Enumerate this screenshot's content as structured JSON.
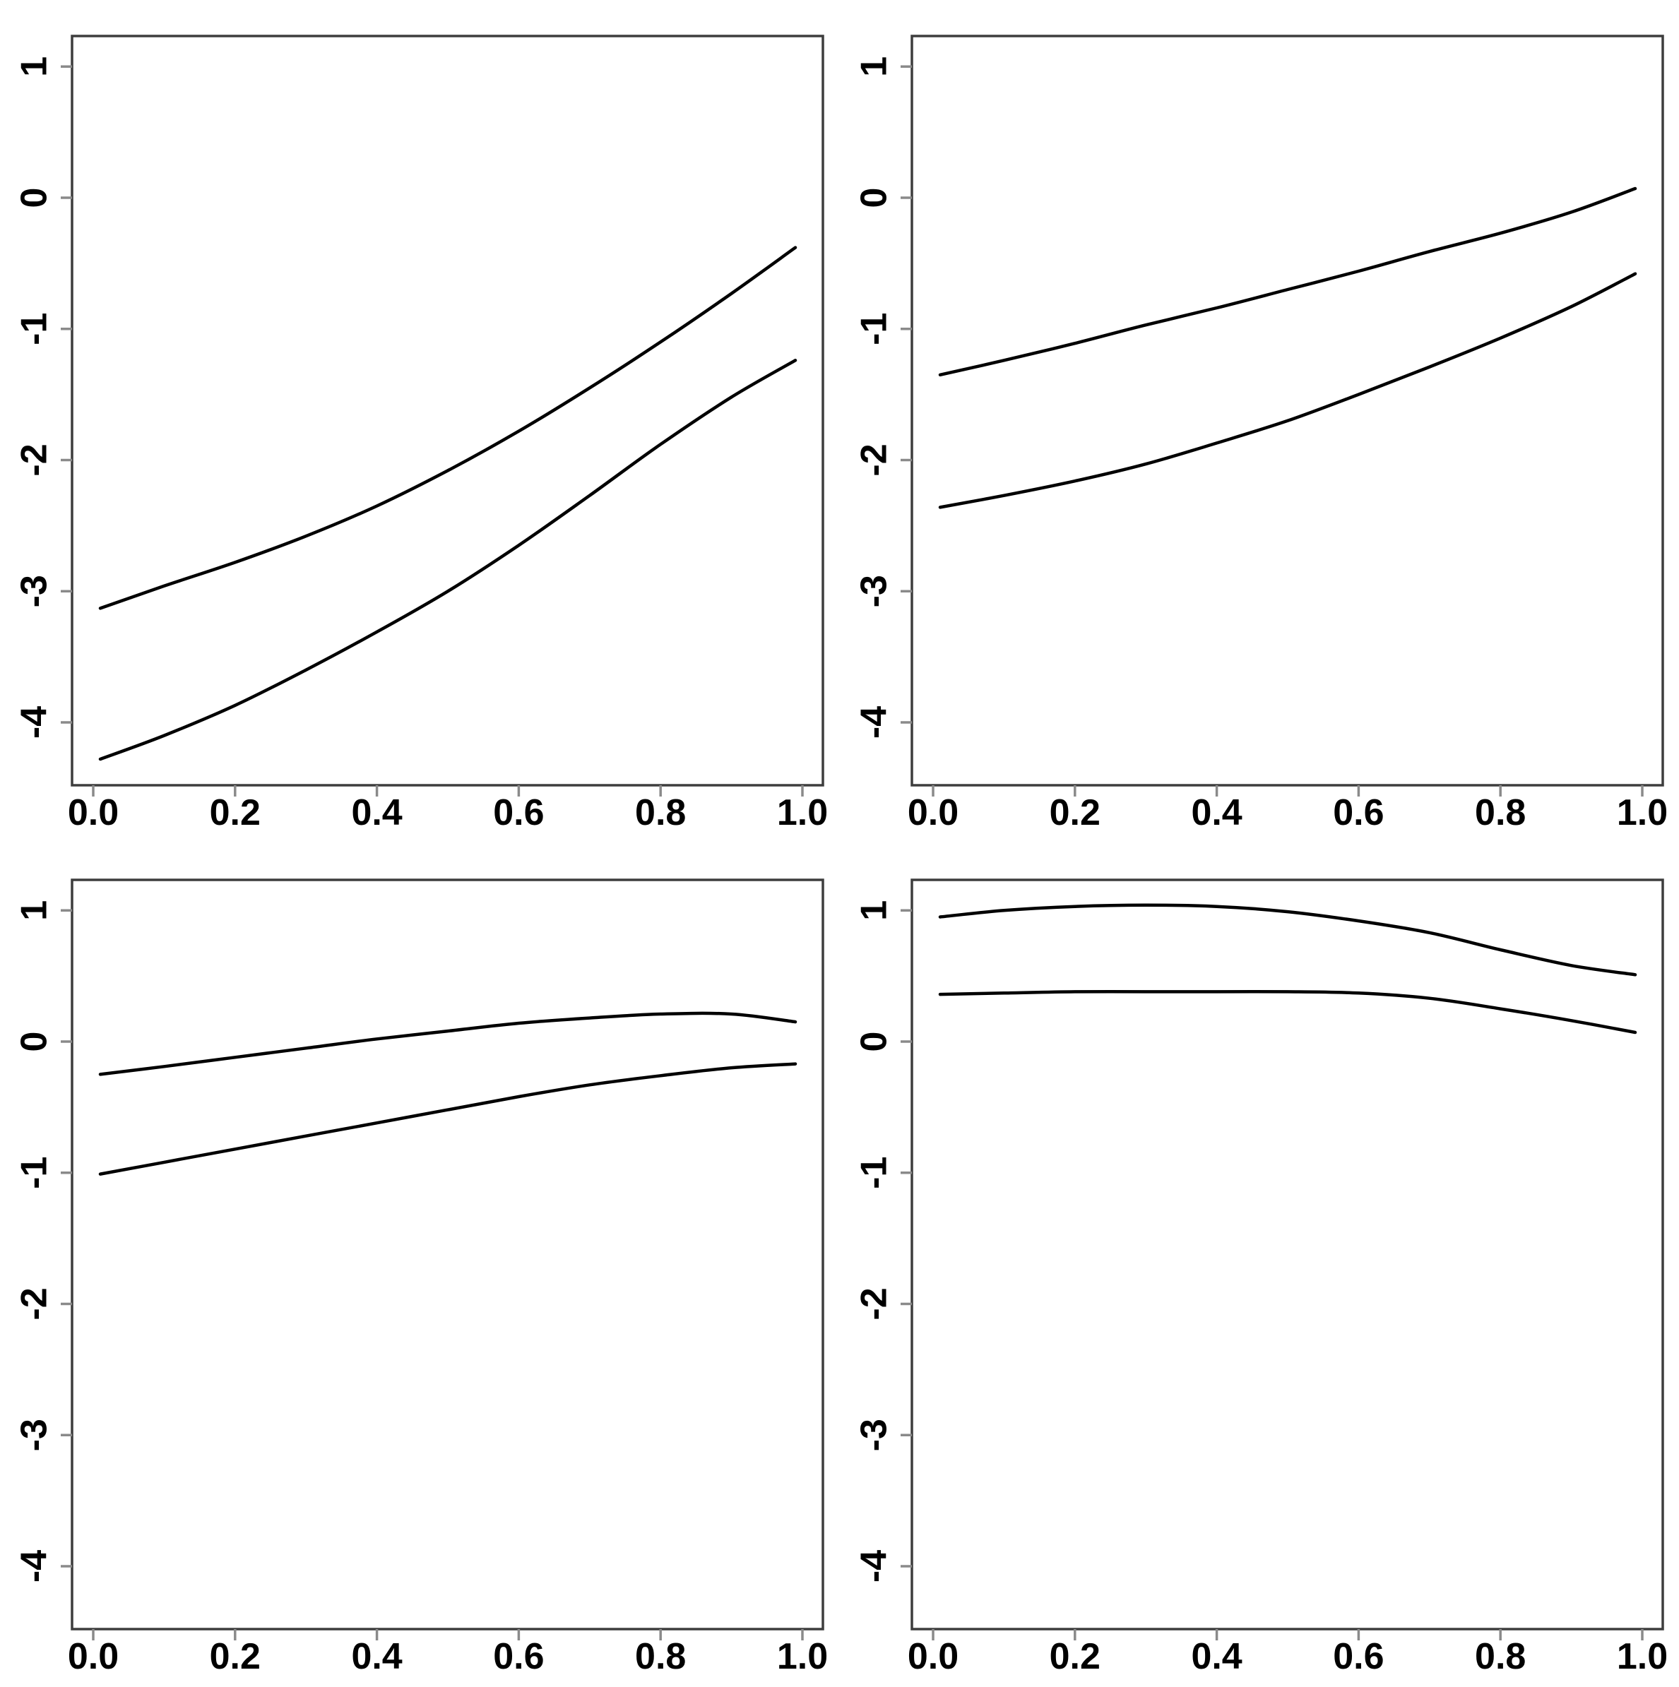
{
  "figure": {
    "kind": "r-base-plot-grid",
    "rows": 2,
    "cols": 2,
    "background_color": "#ffffff",
    "frame_color": "#3d3d3d",
    "tick_color": "#8a8a8a",
    "label_color": "#000000",
    "curve_color": "#000000"
  },
  "chart_data": [
    {
      "type": "line",
      "position": "top-left",
      "title": "",
      "xlabel": "",
      "ylabel": "",
      "xlim": [
        -0.03,
        1.03
      ],
      "ylim": [
        -4.48,
        1.23
      ],
      "grid": false,
      "legend": false,
      "x_ticks": {
        "values": [
          0.0,
          0.2,
          0.4,
          0.6,
          0.8,
          1.0
        ],
        "labels": [
          "0.0",
          "0.2",
          "0.4",
          "0.6",
          "0.8",
          "1.0"
        ]
      },
      "y_ticks": {
        "values": [
          1,
          0,
          -1,
          -2,
          -3,
          -4
        ],
        "labels": [
          "1",
          "0",
          "-1",
          "-2",
          "-3",
          "-4"
        ]
      },
      "x": [
        0.01,
        0.1,
        0.2,
        0.3,
        0.4,
        0.5,
        0.6,
        0.7,
        0.8,
        0.9,
        0.99
      ],
      "series": [
        {
          "name": "upper-curve",
          "values": [
            -3.13,
            -2.96,
            -2.78,
            -2.58,
            -2.35,
            -2.08,
            -1.78,
            -1.45,
            -1.1,
            -0.73,
            -0.38
          ]
        },
        {
          "name": "lower-curve",
          "values": [
            -4.28,
            -4.1,
            -3.87,
            -3.6,
            -3.31,
            -3.0,
            -2.65,
            -2.27,
            -1.88,
            -1.52,
            -1.24
          ]
        }
      ]
    },
    {
      "type": "line",
      "position": "top-right",
      "title": "",
      "xlabel": "",
      "ylabel": "",
      "xlim": [
        -0.03,
        1.03
      ],
      "ylim": [
        -4.48,
        1.23
      ],
      "grid": false,
      "legend": false,
      "x_ticks": {
        "values": [
          0.0,
          0.2,
          0.4,
          0.6,
          0.8,
          1.0
        ],
        "labels": [
          "0.0",
          "0.2",
          "0.4",
          "0.6",
          "0.8",
          "1.0"
        ]
      },
      "y_ticks": {
        "values": [
          1,
          0,
          -1,
          -2,
          -3,
          -4
        ],
        "labels": [
          "1",
          "0",
          "-1",
          "-2",
          "-3",
          "-4"
        ]
      },
      "x": [
        0.01,
        0.1,
        0.2,
        0.3,
        0.4,
        0.5,
        0.6,
        0.7,
        0.8,
        0.9,
        0.99
      ],
      "series": [
        {
          "name": "upper-curve",
          "values": [
            -1.35,
            -1.24,
            -1.11,
            -0.97,
            -0.84,
            -0.7,
            -0.56,
            -0.41,
            -0.27,
            -0.11,
            0.07
          ]
        },
        {
          "name": "lower-curve",
          "values": [
            -2.36,
            -2.27,
            -2.16,
            -2.03,
            -1.87,
            -1.7,
            -1.5,
            -1.29,
            -1.07,
            -0.83,
            -0.58
          ]
        }
      ]
    },
    {
      "type": "line",
      "position": "bottom-left",
      "title": "",
      "xlabel": "",
      "ylabel": "",
      "xlim": [
        -0.03,
        1.03
      ],
      "ylim": [
        -4.48,
        1.23
      ],
      "grid": false,
      "legend": false,
      "x_ticks": {
        "values": [
          0.0,
          0.2,
          0.4,
          0.6,
          0.8,
          1.0
        ],
        "labels": [
          "0.0",
          "0.2",
          "0.4",
          "0.6",
          "0.8",
          "1.0"
        ]
      },
      "y_ticks": {
        "values": [
          1,
          0,
          -1,
          -2,
          -3,
          -4
        ],
        "labels": [
          "1",
          "0",
          "-1",
          "-2",
          "-3",
          "-4"
        ]
      },
      "x": [
        0.01,
        0.1,
        0.2,
        0.3,
        0.4,
        0.5,
        0.6,
        0.7,
        0.8,
        0.9,
        0.99
      ],
      "series": [
        {
          "name": "upper-curve",
          "values": [
            -0.25,
            -0.19,
            -0.12,
            -0.05,
            0.02,
            0.08,
            0.14,
            0.18,
            0.21,
            0.21,
            0.15
          ]
        },
        {
          "name": "lower-curve",
          "values": [
            -1.01,
            -0.92,
            -0.82,
            -0.72,
            -0.62,
            -0.52,
            -0.42,
            -0.33,
            -0.26,
            -0.2,
            -0.17
          ]
        }
      ]
    },
    {
      "type": "line",
      "position": "bottom-right",
      "title": "",
      "xlabel": "",
      "ylabel": "",
      "xlim": [
        -0.03,
        1.03
      ],
      "ylim": [
        -4.48,
        1.23
      ],
      "grid": false,
      "legend": false,
      "x_ticks": {
        "values": [
          0.0,
          0.2,
          0.4,
          0.6,
          0.8,
          1.0
        ],
        "labels": [
          "0.0",
          "0.2",
          "0.4",
          "0.6",
          "0.8",
          "1.0"
        ]
      },
      "y_ticks": {
        "values": [
          1,
          0,
          -1,
          -2,
          -3,
          -4
        ],
        "labels": [
          "1",
          "0",
          "-1",
          "-2",
          "-3",
          "-4"
        ]
      },
      "x": [
        0.01,
        0.1,
        0.2,
        0.3,
        0.4,
        0.5,
        0.6,
        0.7,
        0.8,
        0.9,
        0.99
      ],
      "series": [
        {
          "name": "upper-curve",
          "values": [
            0.95,
            1.0,
            1.03,
            1.04,
            1.03,
            0.99,
            0.92,
            0.83,
            0.7,
            0.58,
            0.51
          ]
        },
        {
          "name": "lower-curve",
          "values": [
            0.36,
            0.37,
            0.38,
            0.38,
            0.38,
            0.38,
            0.37,
            0.33,
            0.25,
            0.16,
            0.07
          ]
        }
      ]
    }
  ]
}
